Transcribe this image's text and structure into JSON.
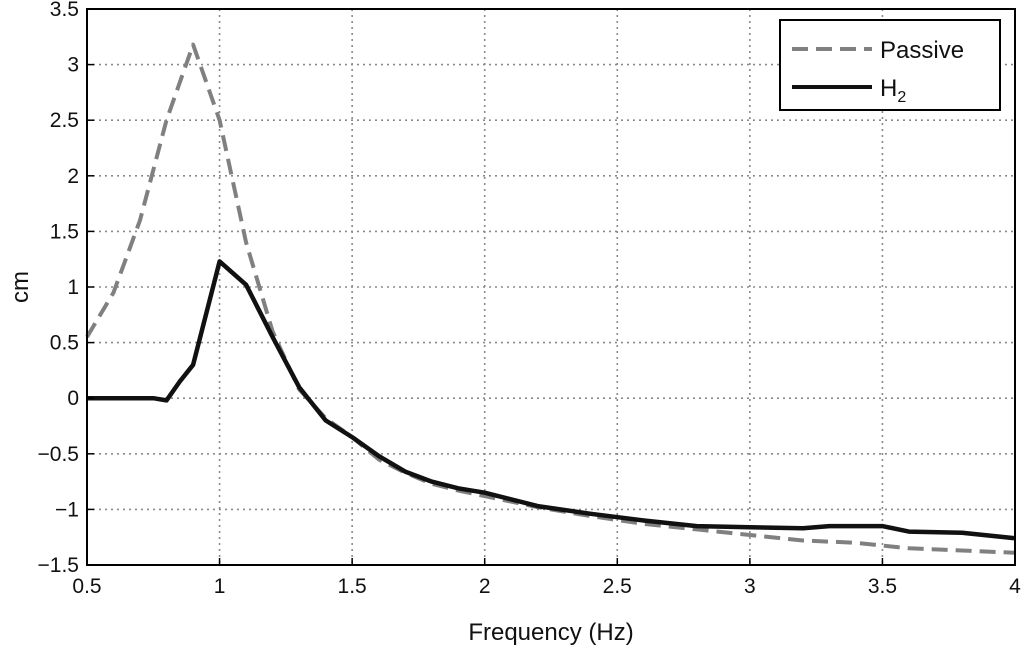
{
  "chart_data": {
    "type": "line",
    "title": "",
    "xlabel": "Frequency (Hz)",
    "ylabel": "cm",
    "xlim": [
      0.5,
      4
    ],
    "ylim": [
      -1.5,
      3.5
    ],
    "xticks": [
      0.5,
      1,
      1.5,
      2,
      2.5,
      3,
      3.5,
      4
    ],
    "xtick_labels": [
      "0.5",
      "1",
      "1.5",
      "2",
      "2.5",
      "3",
      "3.5",
      "4"
    ],
    "yticks": [
      -1.5,
      -1,
      -0.5,
      0,
      0.5,
      1,
      1.5,
      2,
      2.5,
      3,
      3.5
    ],
    "ytick_labels": [
      "−1.5",
      "−1",
      "−0.5",
      "0",
      "0.5",
      "1",
      "1.5",
      "2",
      "2.5",
      "3",
      "3.5"
    ],
    "grid": true,
    "legend_position": "top-right",
    "series": [
      {
        "name": "Passive",
        "subscript": "",
        "color": "#808080",
        "style": "dashed",
        "x": [
          0.5,
          0.6,
          0.7,
          0.8,
          0.9,
          1.0,
          1.1,
          1.2,
          1.3,
          1.4,
          1.5,
          1.6,
          1.7,
          1.8,
          1.9,
          2.0,
          2.2,
          2.4,
          2.6,
          2.8,
          3.0,
          3.2,
          3.4,
          3.6,
          3.8,
          4.0
        ],
        "y": [
          0.55,
          0.95,
          1.6,
          2.5,
          3.18,
          2.5,
          1.4,
          0.6,
          0.08,
          -0.18,
          -0.35,
          -0.55,
          -0.67,
          -0.77,
          -0.83,
          -0.88,
          -0.98,
          -1.06,
          -1.13,
          -1.18,
          -1.23,
          -1.28,
          -1.3,
          -1.35,
          -1.37,
          -1.39
        ]
      },
      {
        "name": "H",
        "subscript": "2",
        "color": "#111111",
        "style": "solid",
        "x": [
          0.5,
          0.75,
          0.8,
          0.85,
          0.9,
          1.0,
          1.1,
          1.2,
          1.3,
          1.4,
          1.5,
          1.6,
          1.7,
          1.8,
          1.9,
          2.0,
          2.2,
          2.4,
          2.6,
          2.8,
          3.0,
          3.2,
          3.3,
          3.5,
          3.6,
          3.8,
          4.0
        ],
        "y": [
          0.0,
          0.0,
          -0.02,
          0.15,
          0.3,
          1.23,
          1.02,
          0.55,
          0.1,
          -0.2,
          -0.35,
          -0.52,
          -0.66,
          -0.75,
          -0.81,
          -0.85,
          -0.97,
          -1.04,
          -1.1,
          -1.15,
          -1.16,
          -1.17,
          -1.15,
          -1.15,
          -1.2,
          -1.21,
          -1.26
        ]
      }
    ]
  }
}
